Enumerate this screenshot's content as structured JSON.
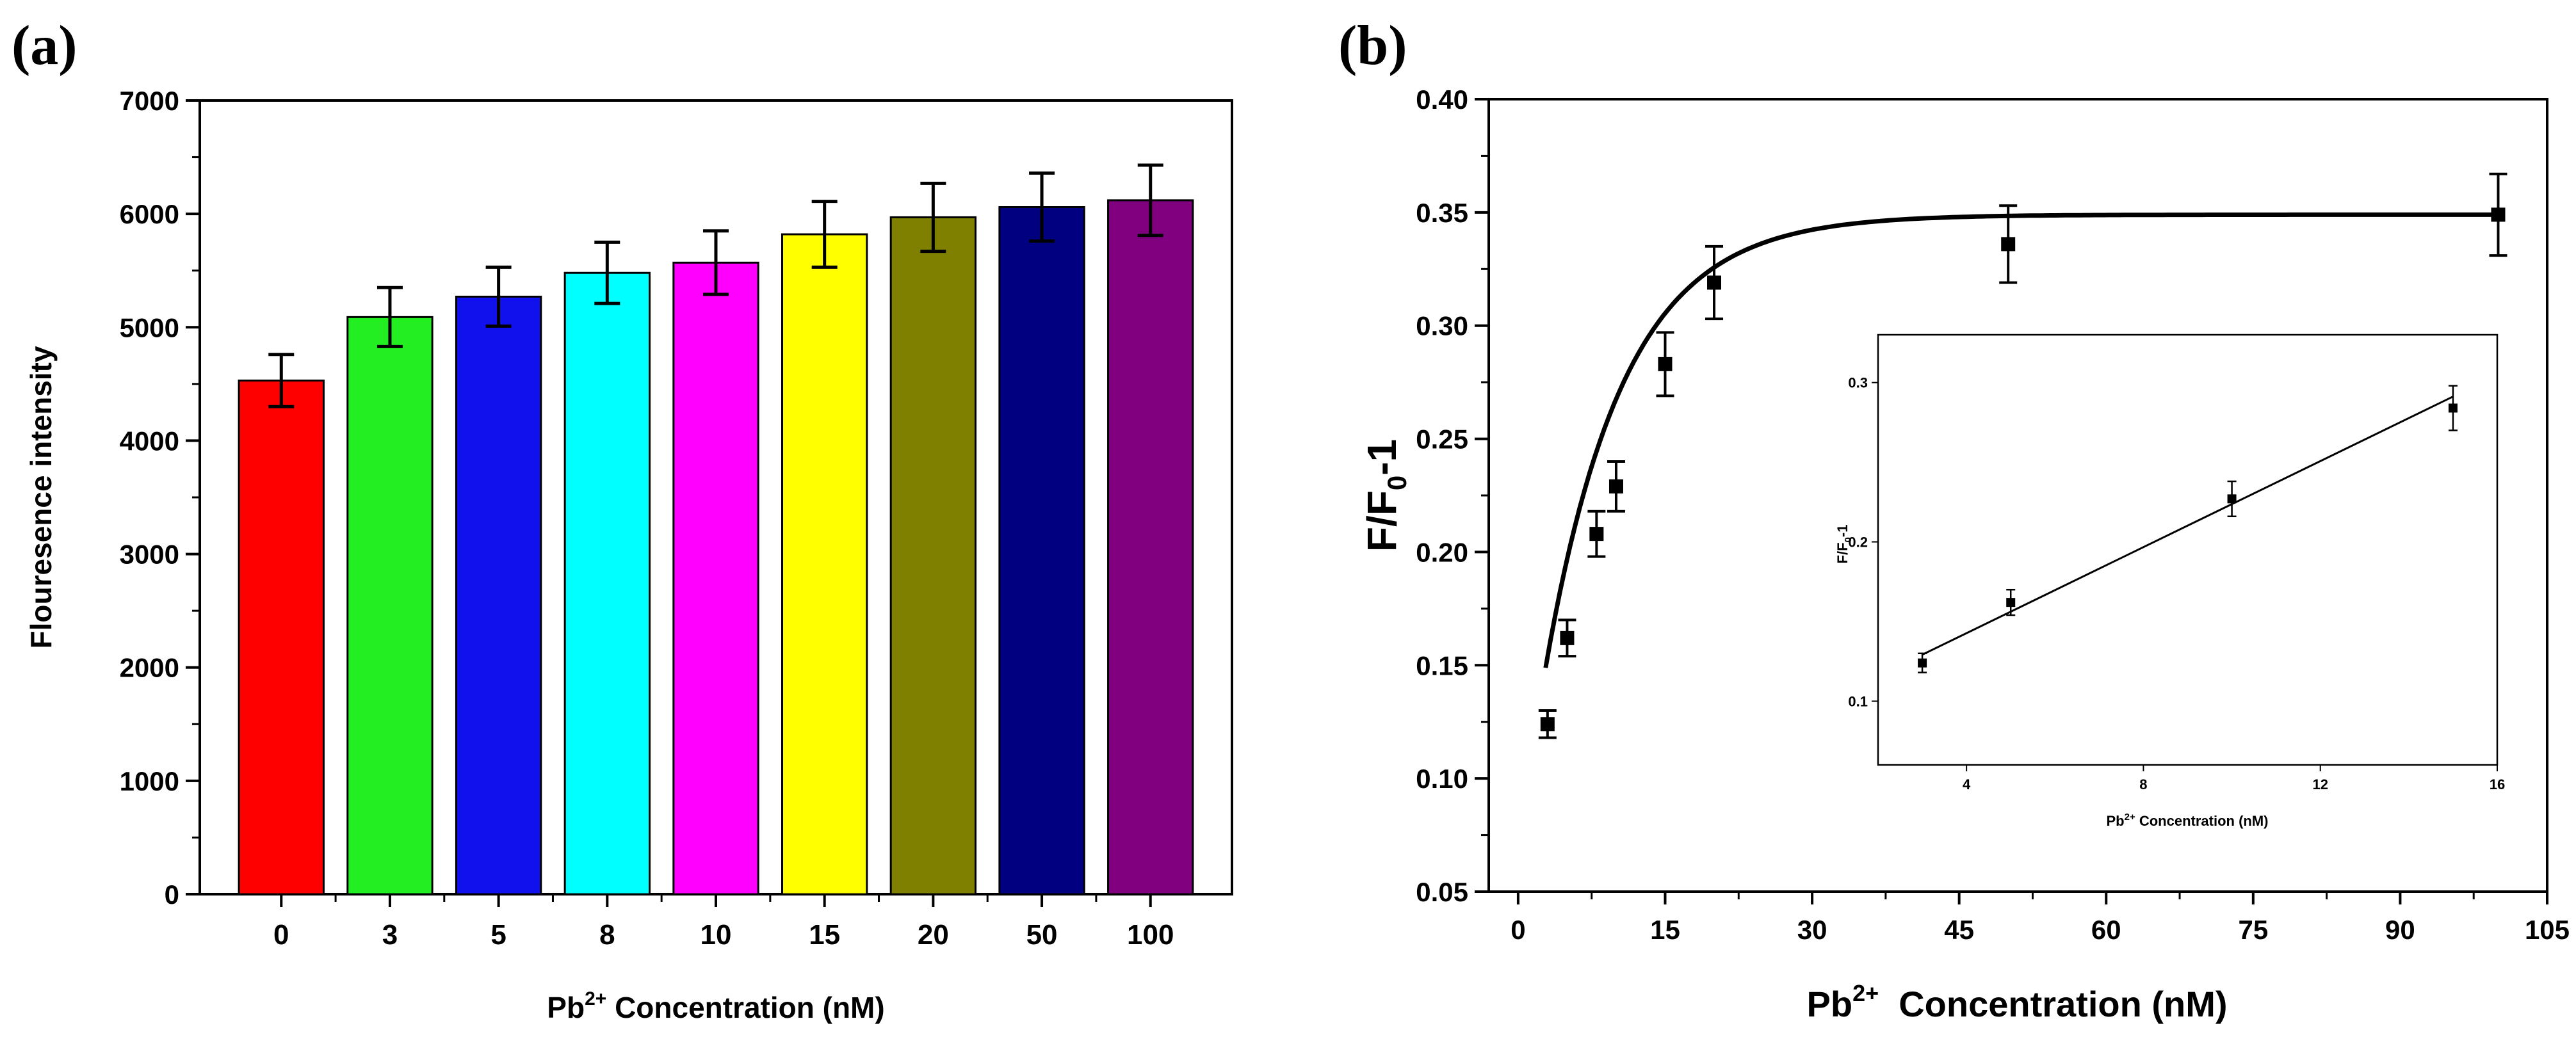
{
  "chart_data": [
    {
      "panel_label": "(a)",
      "type": "bar",
      "title": "",
      "ylabel": "Flouresence intensity",
      "xlabel": {
        "prefix": "Pb",
        "sup": "2+",
        "rest": " Concentration (nM)"
      },
      "categories": [
        "0",
        "3",
        "5",
        "8",
        "10",
        "15",
        "20",
        "50",
        "100"
      ],
      "values": [
        4530,
        5090,
        5270,
        5480,
        5570,
        5820,
        5970,
        6060,
        6120
      ],
      "errors": [
        230,
        260,
        260,
        270,
        280,
        290,
        300,
        300,
        310
      ],
      "colors": [
        "#ff0000",
        "#22ee22",
        "#1111ee",
        "#00ffff",
        "#ff00ff",
        "#ffff00",
        "#7f7f00",
        "#000080",
        "#800080"
      ],
      "ylim": [
        0,
        7000
      ],
      "yticks": [
        0,
        1000,
        2000,
        3000,
        4000,
        5000,
        6000,
        7000
      ],
      "ytick_labels": [
        "0",
        "1000",
        "2000",
        "3000",
        "4000",
        "5000",
        "6000",
        "7000"
      ]
    },
    {
      "panel_label": "(b)",
      "type": "scatter",
      "title": "",
      "ylabel": {
        "prefix": "F/F",
        "sub": "0",
        "rest": "-1"
      },
      "xlabel": {
        "prefix": "Pb",
        "sup": "2+",
        "rest": "  Concentration (nM)"
      },
      "x": [
        3,
        5,
        8,
        10,
        15,
        20,
        50,
        100
      ],
      "y": [
        0.124,
        0.162,
        0.208,
        0.229,
        0.283,
        0.319,
        0.336,
        0.349
      ],
      "errors": [
        0.006,
        0.008,
        0.01,
        0.011,
        0.014,
        0.016,
        0.017,
        0.018
      ],
      "fit": {
        "type": "exponential saturation",
        "ymax": 0.349,
        "y0": 0.065,
        "k": 0.125
      },
      "xlim": [
        -3,
        105
      ],
      "ylim": [
        0.05,
        0.4
      ],
      "xticks": [
        0,
        15,
        30,
        45,
        60,
        75,
        90,
        105
      ],
      "xtick_labels": [
        "0",
        "15",
        "30",
        "45",
        "60",
        "75",
        "90",
        "105"
      ],
      "yticks": [
        0.05,
        0.1,
        0.15,
        0.2,
        0.25,
        0.3,
        0.35,
        0.4
      ],
      "ytick_labels": [
        "0.05",
        "0.10",
        "0.15",
        "0.20",
        "0.25",
        "0.30",
        "0.35",
        "0.40"
      ],
      "inset": {
        "type": "scatter",
        "x": [
          3,
          5,
          10,
          15
        ],
        "y": [
          0.124,
          0.162,
          0.227,
          0.284
        ],
        "errors": [
          0.006,
          0.008,
          0.011,
          0.014
        ],
        "fit": {
          "type": "linear",
          "slope": 0.0135,
          "intercept": 0.0887
        },
        "xlim": [
          2,
          16
        ],
        "ylim": [
          0.06,
          0.33
        ],
        "xticks": [
          4,
          8,
          12,
          16
        ],
        "xtick_labels": [
          "4",
          "8",
          "12",
          "16"
        ],
        "yticks": [
          0.1,
          0.2,
          0.3
        ],
        "ytick_labels": [
          "0.1",
          "0.2",
          "0.3"
        ],
        "xlabel": {
          "prefix": "Pb",
          "sup": "2+",
          "rest": " Concentration (nM)"
        },
        "ylabel": {
          "prefix": "F/F",
          "sub": "0",
          "rest": "-1"
        }
      }
    }
  ]
}
